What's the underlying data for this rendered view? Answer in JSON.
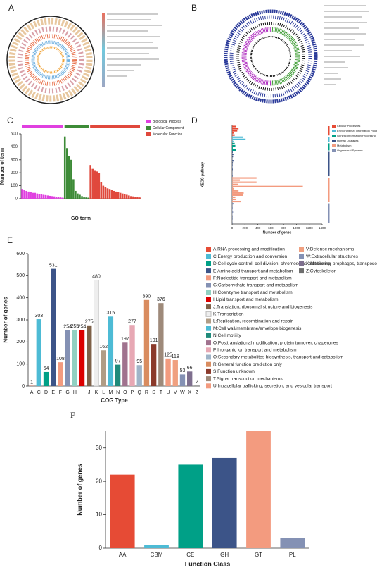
{
  "figure_panels": [
    "A",
    "B"
  ],
  "chart_data": [
    {
      "panel": "C",
      "type": "bar",
      "ylabel": "Number of term",
      "xlabel": "GO term",
      "ylim": [
        0,
        500
      ],
      "yticks": [
        0,
        100,
        200,
        300,
        400,
        500
      ],
      "legend": "top-right",
      "series": [
        {
          "name": "Biological Process",
          "color": "#e040e0",
          "values": [
            75,
            70,
            60,
            55,
            50,
            45,
            45,
            40,
            38,
            35,
            30,
            28,
            25,
            22,
            20,
            18,
            15,
            12,
            10,
            8
          ]
        },
        {
          "name": "Cellular Component",
          "color": "#3d8b37",
          "values": [
            480,
            390,
            330,
            300,
            150,
            60,
            40,
            30,
            20,
            15,
            10,
            8
          ]
        },
        {
          "name": "Molecular Function",
          "color": "#e0483c",
          "values": [
            260,
            230,
            220,
            210,
            200,
            130,
            100,
            90,
            80,
            75,
            70,
            60,
            55,
            50,
            45,
            40,
            35,
            30,
            25,
            20,
            18,
            15,
            12,
            10
          ]
        }
      ]
    },
    {
      "panel": "D",
      "type": "barh",
      "ylabel": "KEGG pathway",
      "xlabel": "Number of genes",
      "xlim": [
        0,
        1400
      ],
      "xticks": [
        0,
        200,
        400,
        600,
        800,
        1000,
        1200,
        1400
      ],
      "legend": "right",
      "series": [
        {
          "name": "Cellular Processes",
          "color": "#e64b35",
          "values": [
            60,
            100,
            80,
            30,
            40
          ]
        },
        {
          "name": "Environmental Information Processing",
          "color": "#4dbbd5",
          "values": [
            170,
            210,
            20
          ]
        },
        {
          "name": "Genetic Information Processing",
          "color": "#00a087",
          "values": [
            40,
            50,
            10,
            60
          ]
        },
        {
          "name": "Human Diseases",
          "color": "#3c5488",
          "values": [
            10,
            20,
            15,
            5,
            30,
            12,
            8,
            5,
            10,
            3,
            5,
            8
          ]
        },
        {
          "name": "Metabolism",
          "color": "#f39b7f",
          "values": [
            380,
            120,
            380,
            90,
            1100,
            30,
            100,
            180,
            170,
            50,
            60,
            140
          ]
        },
        {
          "name": "Organismal Systems",
          "color": "#8491b4",
          "values": [
            20,
            8,
            10,
            5,
            15,
            5,
            10,
            10,
            5,
            8
          ]
        }
      ]
    },
    {
      "panel": "E",
      "type": "bar",
      "ylabel": "Number of genes",
      "xlabel": "COG Type",
      "ylim": [
        0,
        600
      ],
      "yticks": [
        0,
        100,
        200,
        300,
        400,
        500,
        600
      ],
      "data_labels": true,
      "categories": [
        "A",
        "C",
        "D",
        "E",
        "F",
        "G",
        "H",
        "I",
        "J",
        "K",
        "L",
        "M",
        "N",
        "O",
        "P",
        "Q",
        "R",
        "S",
        "T",
        "U",
        "V",
        "W",
        "X",
        "Z"
      ],
      "values": [
        1,
        303,
        64,
        531,
        108,
        254,
        255,
        254,
        275,
        480,
        162,
        315,
        97,
        197,
        277,
        95,
        390,
        191,
        376,
        125,
        118,
        53,
        66,
        2
      ],
      "colors": [
        "#e64b35",
        "#4dbbd5",
        "#00a087",
        "#3c5488",
        "#f39b7f",
        "#8491b4",
        "#91d1c2",
        "#dc0000",
        "#7e6148",
        "#eeeeee",
        "#b09c85",
        "#4dbbd5",
        "#1f8a7a",
        "#a0728e",
        "#e7a8b4",
        "#9fb4c8",
        "#d98c5f",
        "#8b3a2b",
        "#9e8a7a",
        "#f39b7f",
        "#f0a080",
        "#8491b4",
        "#7e6f8e",
        "#6e6e6e"
      ],
      "legend_labels": [
        "A:RNA processing and modification",
        "C:Energy production and conversion",
        "D:Cell cycle control, cell division, chromosome partitioning",
        "E:Amino acid transport and metabolism",
        "F:Nucleotide transport and metabolism",
        "G:Carbohydrate transport and metabolism",
        "H:Coenzyme transport and metabolism",
        "I:Lipid transport and metabolism",
        "J:Translation, ribosomal structure and biogenesis",
        "K:Transcription",
        "L:Replication, recombination and repair",
        "M:Cell wall/membrane/envelope biogenesis",
        "N:Cell motility",
        "O:Posttranslational modification, protein turnover, chaperones",
        "P:Inorganic ion transport and metabolism",
        "Q:Secondary metabolites biosynthesis, transport and catabolism",
        "R:General function prediction only",
        "S:Function unknown",
        "T:Signal transduction mechanisms",
        "U:Intracellular trafficking, secretion, and vesicular transport",
        "V:Defense mechanisms",
        "W:Extracellular structures",
        "X:Mobilome: prophages, transposons",
        "Z:Cytoskeleton"
      ]
    },
    {
      "panel": "F",
      "type": "bar",
      "ylabel": "Number of genes",
      "xlabel": "Function Class",
      "ylim": [
        0,
        35
      ],
      "yticks": [
        0,
        10,
        20,
        30
      ],
      "categories": [
        "AA",
        "CBM",
        "CE",
        "GH",
        "GT",
        "PL"
      ],
      "values": [
        22,
        1,
        25,
        27,
        35,
        3
      ],
      "colors": [
        "#e64b35",
        "#4dbbd5",
        "#00a087",
        "#3c5488",
        "#f39b7f",
        "#8491b4"
      ]
    }
  ]
}
